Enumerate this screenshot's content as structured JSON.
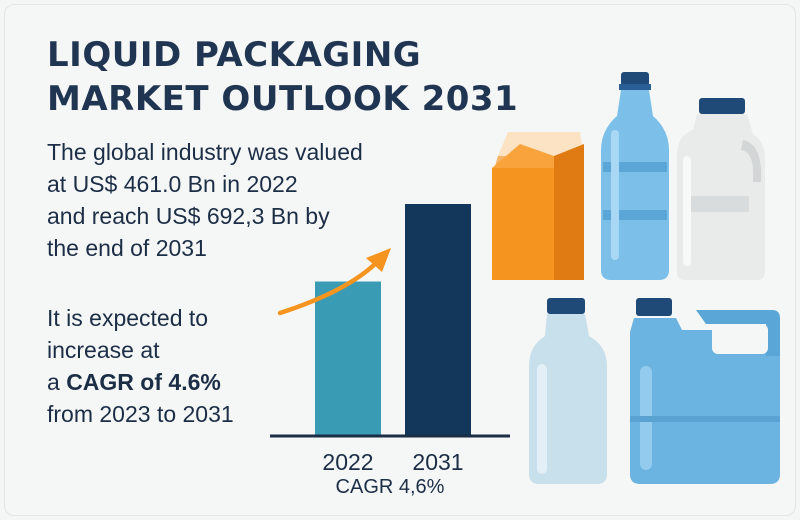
{
  "title": {
    "line1": "LIQUID PACKAGING",
    "line2": "MARKET OUTLOOK 2031"
  },
  "description": {
    "line1": "The global industry was valued",
    "line2": "at US$ 461.0 Bn in 2022",
    "line3": "and reach US$ 692,3 Bn by",
    "line4": "the end of 2031"
  },
  "cagr_text": {
    "line1": "It is expected to",
    "line2": "increase at",
    "line3_prefix": "a ",
    "line3_bold": "CAGR of 4.6%",
    "line4": "from 2023 to 2031"
  },
  "chart_data": {
    "type": "bar",
    "categories": [
      "2022",
      "2031"
    ],
    "values": [
      461.0,
      692.3
    ],
    "xlabel": "CAGR 4,6%",
    "colors": [
      "#3a9bb5",
      "#12375a"
    ],
    "arrow_color": "#f5941e"
  },
  "colors": {
    "title": "#1f3552",
    "carton_orange": "#f5941e",
    "bottle_blue": "#6bb3e0",
    "jug_white": "#e9eaea",
    "cap_navy": "#1f4a78"
  },
  "icons": [
    "juice-carton-icon",
    "water-bottle-icon",
    "milk-jug-icon",
    "plastic-bottle-icon",
    "jerrycan-icon"
  ]
}
